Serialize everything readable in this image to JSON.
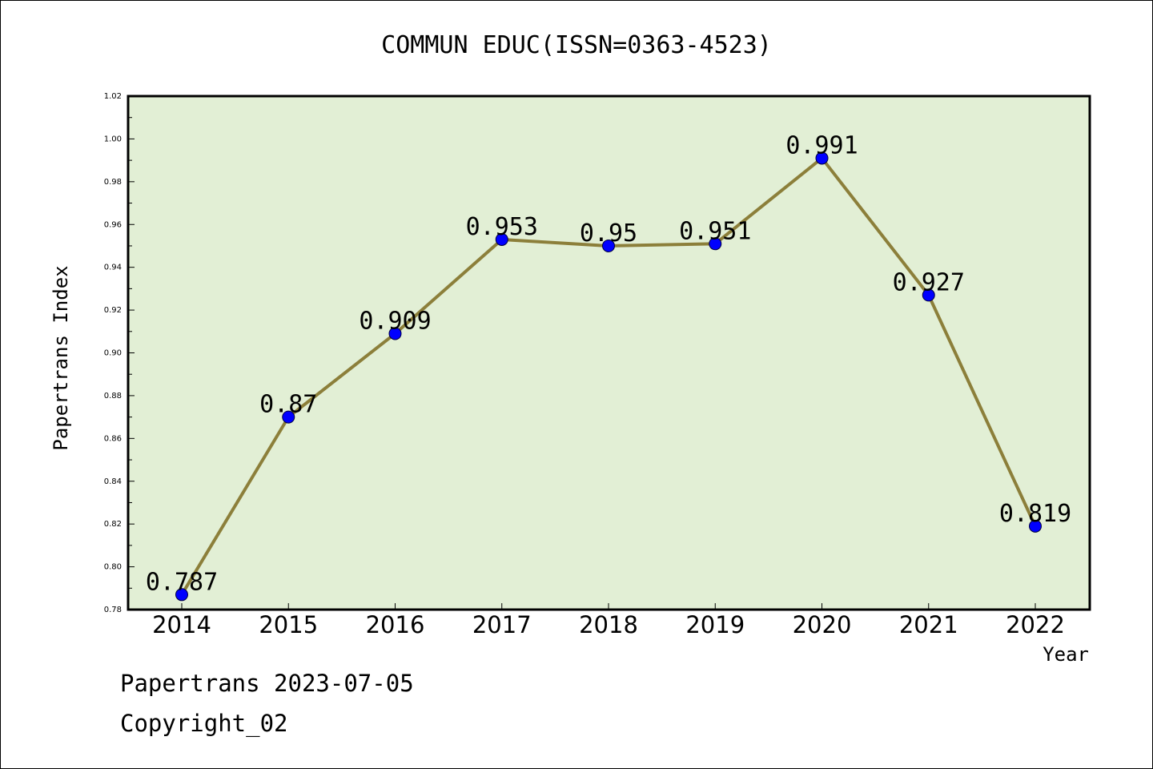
{
  "chart_data": {
    "type": "line",
    "title": "COMMUN EDUC(ISSN=0363-4523)",
    "xlabel": "Year",
    "ylabel": "Papertrans Index",
    "categories": [
      "2014",
      "2015",
      "2016",
      "2017",
      "2018",
      "2019",
      "2020",
      "2021",
      "2022"
    ],
    "series": [
      {
        "values": [
          0.787,
          0.87,
          0.909,
          0.953,
          0.95,
          0.951,
          0.991,
          0.927,
          0.819
        ],
        "labels": [
          "0.787",
          "0.87",
          "0.909",
          "0.953",
          "0.95",
          "0.951",
          "0.991",
          "0.927",
          "0.819"
        ]
      }
    ],
    "ylim": [
      0.78,
      1.02
    ],
    "yticks": [
      "0.78",
      "0.80",
      "0.82",
      "0.84",
      "0.86",
      "0.88",
      "0.90",
      "0.92",
      "0.94",
      "0.96",
      "0.98",
      "1.00",
      "1.02"
    ],
    "grid": false,
    "colors": {
      "plot_background": "#e2efd5",
      "line": "#8c7f3a",
      "marker": "#0000ff"
    }
  },
  "footer": {
    "date_text": "Papertrans 2023-07-05",
    "copyright_text": "Copyright_02"
  }
}
